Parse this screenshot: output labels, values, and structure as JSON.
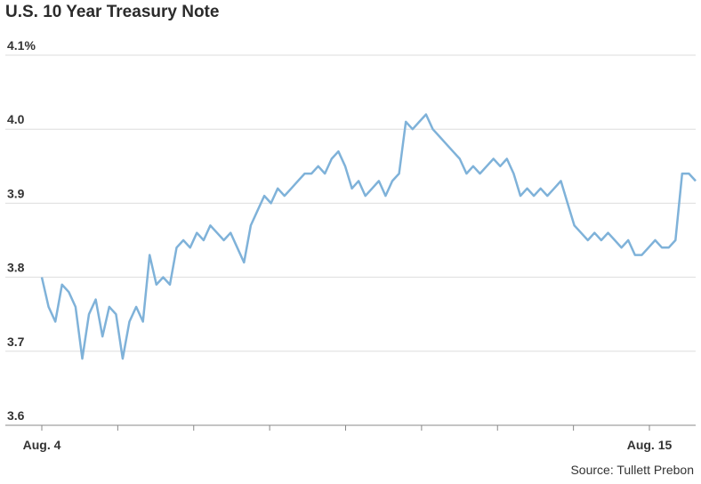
{
  "chart_data": {
    "type": "line",
    "title": "U.S. 10 Year Treasury Note",
    "source": "Source: Tullett Prebon",
    "ylim": [
      3.6,
      4.1
    ],
    "yticks": [
      {
        "value": 4.1,
        "label": "4.1%"
      },
      {
        "value": 4.0,
        "label": "4.0"
      },
      {
        "value": 3.9,
        "label": "3.9"
      },
      {
        "value": 3.8,
        "label": "3.8"
      },
      {
        "value": 3.7,
        "label": "3.7"
      },
      {
        "value": 3.6,
        "label": "3.6"
      }
    ],
    "xticks": [
      "Aug. 4",
      "",
      "",
      "",
      "",
      "",
      "",
      "",
      "Aug. 15"
    ],
    "grid": "horizontal",
    "colors": {
      "line": "#7fb2d9",
      "grid": "#dddddd",
      "axis": "#888888"
    },
    "series": [
      {
        "values": [
          3.8,
          3.76,
          3.74,
          3.79,
          3.78,
          3.76,
          3.69,
          3.75,
          3.77,
          3.72,
          3.76,
          3.75,
          3.69,
          3.74,
          3.76,
          3.74,
          3.83,
          3.79,
          3.8,
          3.79,
          3.84,
          3.85,
          3.84,
          3.86,
          3.85,
          3.87,
          3.86,
          3.85,
          3.86,
          3.84,
          3.82,
          3.87,
          3.89,
          3.91,
          3.9,
          3.92,
          3.91,
          3.92,
          3.93,
          3.94,
          3.94,
          3.95,
          3.94,
          3.96,
          3.97,
          3.95,
          3.92,
          3.93,
          3.91,
          3.92,
          3.93,
          3.91,
          3.93,
          3.94,
          4.01,
          4.0,
          4.01,
          4.02,
          4.0,
          3.99,
          3.98,
          3.97,
          3.96,
          3.94,
          3.95,
          3.94,
          3.95,
          3.96,
          3.95,
          3.96,
          3.94,
          3.91,
          3.92,
          3.91,
          3.92,
          3.91,
          3.92,
          3.93,
          3.9,
          3.87,
          3.86,
          3.85,
          3.86,
          3.85,
          3.86,
          3.85,
          3.84,
          3.85,
          3.83,
          3.83,
          3.84,
          3.85,
          3.84,
          3.84,
          3.85,
          3.94,
          3.94,
          3.93
        ]
      }
    ]
  }
}
